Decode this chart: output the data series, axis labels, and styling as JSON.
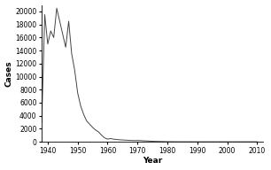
{
  "title": "",
  "xlabel": "Year",
  "ylabel": "Cases",
  "background_color": "#ffffff",
  "line_color": "#444444",
  "xlim": [
    1938,
    2012
  ],
  "ylim": [
    0,
    21000
  ],
  "xticks": [
    1940,
    1950,
    1960,
    1970,
    1980,
    1990,
    2000,
    2010
  ],
  "yticks": [
    0,
    2000,
    4000,
    6000,
    8000,
    10000,
    12000,
    14000,
    16000,
    18000,
    20000
  ],
  "years": [
    1938,
    1939,
    1940,
    1941,
    1942,
    1943,
    1944,
    1945,
    1946,
    1947,
    1948,
    1949,
    1950,
    1951,
    1952,
    1953,
    1954,
    1955,
    1956,
    1957,
    1958,
    1959,
    1960,
    1961,
    1962,
    1963,
    1964,
    1965,
    1966,
    1967,
    1968,
    1969,
    1970,
    1971,
    1972,
    1973,
    1974,
    1975,
    1976,
    1977,
    1978,
    1979,
    1980,
    1981,
    1982,
    1983,
    1984,
    1985,
    1990,
    1995,
    2000,
    2005,
    2010
  ],
  "cases": [
    3000,
    19500,
    15000,
    17000,
    16000,
    20500,
    18500,
    16500,
    14500,
    18500,
    13500,
    11000,
    7500,
    5500,
    4200,
    3200,
    2700,
    2200,
    1800,
    1500,
    1000,
    600,
    400,
    500,
    400,
    350,
    300,
    280,
    250,
    220,
    200,
    180,
    200,
    180,
    150,
    130,
    100,
    80,
    60,
    50,
    40,
    30,
    20,
    15,
    10,
    8,
    5,
    4,
    2,
    1,
    0,
    0,
    0
  ]
}
